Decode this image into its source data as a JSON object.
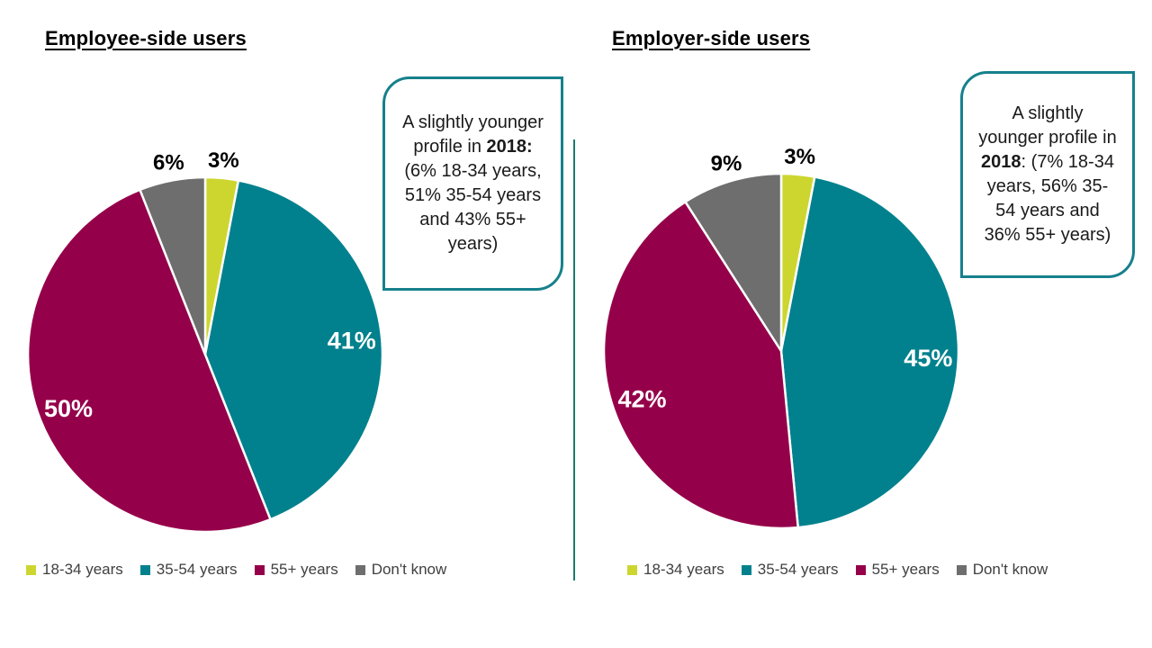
{
  "accent_color": "#16808c",
  "divider_color": "#1b7a6e",
  "chart_data": [
    {
      "type": "pie",
      "title": "Employee-side users",
      "categories": [
        "18-34 years",
        "35-54 years",
        "55+ years",
        "Don't know"
      ],
      "values": [
        3,
        41,
        50,
        6
      ],
      "labels": [
        "3%",
        "41%",
        "50%",
        "6%"
      ],
      "colors": [
        "#cdd62f",
        "#00818d",
        "#95004a",
        "#6e6e6e"
      ],
      "start": "12-oclock",
      "direction": "clockwise",
      "legend_position": "bottom",
      "label_inside_color": "#ffffff",
      "label_outside_color": "#000000",
      "callout": {
        "pre": "A slightly younger profile in ",
        "bold": "2018:",
        "post": " (6% 18-34 years, 51% 35-54 years and 43% 55+ years)"
      }
    },
    {
      "type": "pie",
      "title": "Employer-side users",
      "categories": [
        "18-34 years",
        "35-54 years",
        "55+ years",
        "Don't know"
      ],
      "values": [
        3,
        45,
        42,
        9
      ],
      "labels": [
        "3%",
        "45%",
        "42%",
        "9%"
      ],
      "colors": [
        "#cdd62f",
        "#00818d",
        "#95004a",
        "#6e6e6e"
      ],
      "start": "12-oclock",
      "direction": "clockwise",
      "legend_position": "bottom",
      "label_inside_color": "#ffffff",
      "label_outside_color": "#000000",
      "callout": {
        "pre": "A slightly younger profile in ",
        "bold": "2018",
        "post": ": (7% 18-34 years, 56% 35-54 years and 36% 55+ years)"
      }
    }
  ]
}
